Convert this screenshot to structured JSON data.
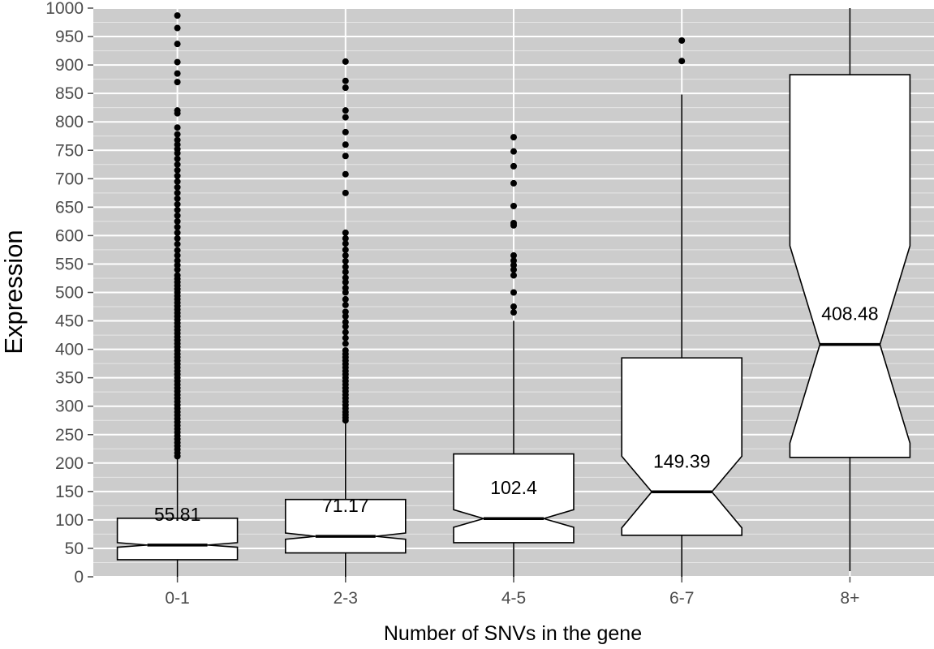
{
  "chart_data": {
    "type": "boxplot",
    "notched": true,
    "xlabel": "Number of SNVs in the gene",
    "ylabel": "Expression",
    "ylim": [
      0,
      1000
    ],
    "yticks": [
      0,
      50,
      100,
      150,
      200,
      250,
      300,
      350,
      400,
      450,
      500,
      550,
      600,
      650,
      700,
      750,
      800,
      850,
      900,
      950,
      1000
    ],
    "grid": true,
    "background_color": "#cccccc",
    "categories": [
      "0-1",
      "2-3",
      "4-5",
      "6-7",
      "8+"
    ],
    "boxes": [
      {
        "category": "0-1",
        "q1": 30,
        "median": 55.81,
        "q3": 103,
        "notch_low": 52,
        "notch_high": 60,
        "whisker_low": 0,
        "whisker_high": 210,
        "median_label": "55.81",
        "outliers": [
          212,
          218,
          224,
          230,
          236,
          242,
          248,
          254,
          260,
          266,
          272,
          278,
          284,
          290,
          296,
          302,
          308,
          314,
          320,
          326,
          332,
          338,
          344,
          350,
          356,
          362,
          368,
          374,
          380,
          386,
          392,
          398,
          404,
          410,
          416,
          422,
          428,
          434,
          440,
          446,
          452,
          458,
          464,
          470,
          476,
          482,
          488,
          494,
          500,
          506,
          512,
          518,
          524,
          530,
          540,
          548,
          556,
          565,
          574,
          585,
          595,
          605,
          615,
          625,
          635,
          645,
          655,
          665,
          675,
          685,
          695,
          705,
          715,
          725,
          735,
          745,
          752,
          760,
          768,
          778,
          790,
          815,
          820,
          870,
          885,
          905,
          937,
          965,
          987
        ]
      },
      {
        "category": "2-3",
        "q1": 42,
        "median": 71.17,
        "q3": 136,
        "notch_low": 66,
        "notch_high": 77,
        "whisker_low": 0,
        "whisker_high": 270,
        "median_label": "71.17",
        "outliers": [
          275,
          280,
          285,
          290,
          296,
          302,
          308,
          314,
          320,
          326,
          332,
          338,
          344,
          350,
          356,
          362,
          368,
          374,
          380,
          386,
          392,
          398,
          410,
          420,
          430,
          440,
          448,
          458,
          466,
          478,
          488,
          500,
          508,
          518,
          526,
          536,
          545,
          555,
          565,
          575,
          586,
          595,
          605,
          675,
          708,
          740,
          760,
          782,
          808,
          820,
          860,
          872,
          906
        ]
      },
      {
        "category": "4-5",
        "q1": 60,
        "median": 102.4,
        "q3": 216,
        "notch_low": 87,
        "notch_high": 118,
        "whisker_low": 0,
        "whisker_high": 450,
        "median_label": "102.4",
        "outliers": [
          465,
          475,
          500,
          530,
          540,
          548,
          556,
          565,
          618,
          622,
          652,
          692,
          722,
          748,
          773
        ]
      },
      {
        "category": "6-7",
        "q1": 73,
        "median": 149.39,
        "q3": 385,
        "notch_low": 86,
        "notch_high": 212,
        "whisker_low": 0,
        "whisker_high": 848,
        "median_label": "149.39",
        "outliers": [
          907,
          943
        ]
      },
      {
        "category": "8+",
        "q1": 210,
        "median": 408.48,
        "q3": 883,
        "notch_low": 235,
        "notch_high": 582,
        "whisker_low": 10,
        "whisker_high": 1000,
        "median_label": "408.48",
        "outliers": []
      }
    ]
  }
}
